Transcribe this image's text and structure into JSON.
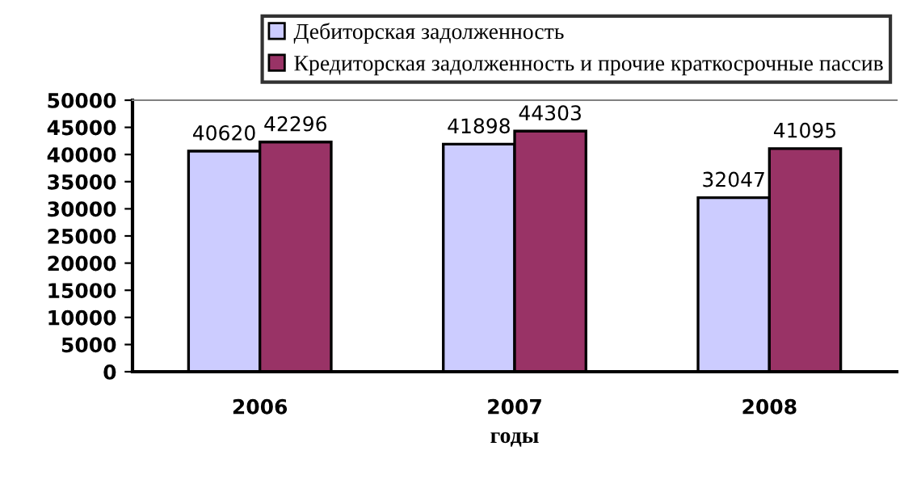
{
  "chart_data": {
    "type": "bar",
    "xlabel": "годы",
    "categories": [
      "2006",
      "2007",
      "2008"
    ],
    "series": [
      {
        "name": "Дебиторская задолженность",
        "color": "#ccccff",
        "values": [
          40620,
          41898,
          32047
        ]
      },
      {
        "name": "Кредиторская задолженность и прочие краткосрочные пассив",
        "color": "#993366",
        "values": [
          42296,
          44303,
          41095
        ]
      }
    ],
    "ylim": [
      0,
      50000
    ],
    "yticks": [
      0,
      5000,
      10000,
      15000,
      20000,
      25000,
      30000,
      35000,
      40000,
      45000,
      50000
    ],
    "data_labels": true,
    "legend": "top",
    "grid": false
  }
}
